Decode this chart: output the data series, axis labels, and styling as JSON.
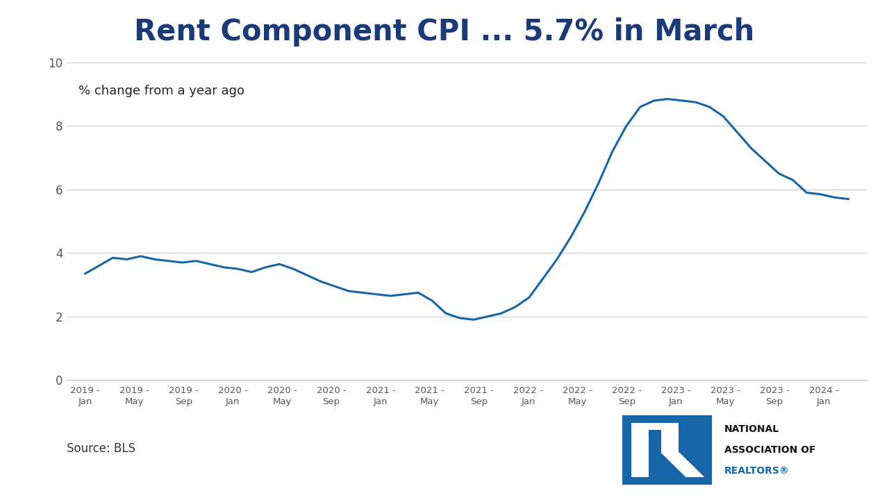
{
  "title": "Rent Component CPI ... 5.7% in March",
  "subtitle": "% change from a year ago",
  "source": "Source: BLS",
  "line_color": "#1565a7",
  "line_width": 2.2,
  "background_color": "#ffffff",
  "ylim": [
    0,
    10
  ],
  "yticks": [
    0,
    2,
    4,
    6,
    8,
    10
  ],
  "x_labels": [
    "2019 -\nJan",
    "2019 -\nMay",
    "2019 -\nSep",
    "2020 -\nJan",
    "2020 -\nMay",
    "2020 -\nSep",
    "2021 -\nJan",
    "2021 -\nMay",
    "2021 -\nSep",
    "2022 -\nJan",
    "2022 -\nMay",
    "2022 -\nSep",
    "2023 -\nJan",
    "2023 -\nMay",
    "2023 -\nSep",
    "2024 -\nJan"
  ],
  "values": [
    3.35,
    3.6,
    3.85,
    3.8,
    3.9,
    3.8,
    3.75,
    3.7,
    3.75,
    3.65,
    3.55,
    3.5,
    3.4,
    3.55,
    3.65,
    3.5,
    3.3,
    3.1,
    2.95,
    2.8,
    2.75,
    2.7,
    2.65,
    2.7,
    2.75,
    2.5,
    2.1,
    1.95,
    1.9,
    2.0,
    2.1,
    2.3,
    2.6,
    3.2,
    3.8,
    4.5,
    5.3,
    6.2,
    7.2,
    8.0,
    8.6,
    8.8,
    8.85,
    8.8,
    8.75,
    8.6,
    8.3,
    7.8,
    7.3,
    6.9,
    6.5,
    6.3,
    5.9,
    5.85,
    5.75,
    5.7
  ],
  "title_color": "#1a3a7a",
  "title_fontsize": 30,
  "subtitle_fontsize": 13,
  "source_fontsize": 12,
  "nar_blue": "#1565a7",
  "nar_dark": "#111111"
}
